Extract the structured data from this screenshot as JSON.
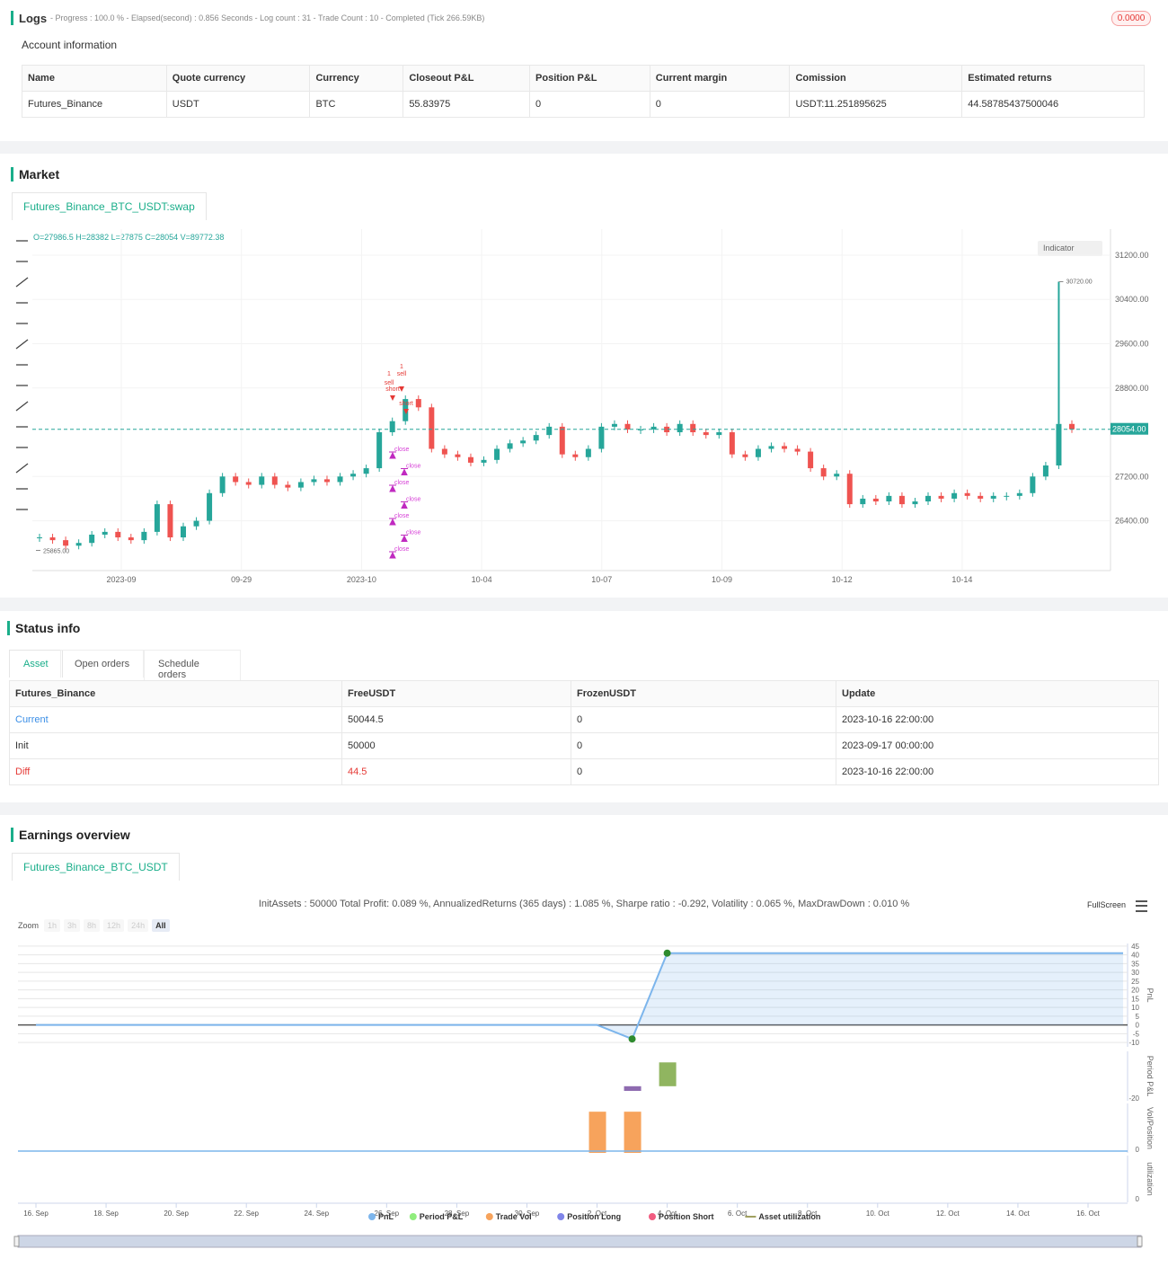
{
  "logs": {
    "title": "Logs",
    "status": "- Progress : 100.0 % - Elapsed(second) : 0.856  Seconds - Log count : 31 - Trade Count : 10 - Completed (Tick 266.59KB)",
    "badge": "0.0000"
  },
  "account": {
    "title": "Account information",
    "columns": [
      "Name",
      "Quote currency",
      "Currency",
      "Closeout P&L",
      "Position P&L",
      "Current margin",
      "Comission",
      "Estimated returns"
    ],
    "rows": [
      [
        "Futures_Binance",
        "USDT",
        "BTC",
        "55.83975",
        "0",
        "0",
        "USDT:11.251895625",
        "44.58785437500046"
      ]
    ]
  },
  "market": {
    "title": "Market",
    "tab": "Futures_Binance_BTC_USDT:swap",
    "ohlc": "O=27986.5 H=28382 L=27875 C=28054 V=89772.38",
    "indicator": "Indicator",
    "chart": {
      "type": "candlestick",
      "color_up": "#26a69a",
      "color_down": "#ef5350",
      "closes": [
        26100,
        26050,
        25950,
        26000,
        26150,
        26200,
        26100,
        26050,
        26200,
        26700,
        26100,
        26300,
        26400,
        26900,
        27200,
        27100,
        27050,
        27200,
        27050,
        27000,
        27100,
        27150,
        27100,
        27200,
        27250,
        27350,
        28000,
        28200,
        28600,
        28450,
        27700,
        27600,
        27550,
        27450,
        27500,
        27700,
        27800,
        27850,
        27950,
        28100,
        27600,
        27550,
        27700,
        28100,
        28150,
        28050,
        28050,
        28100,
        28000,
        28150,
        28000,
        27950,
        28000,
        27600,
        27550,
        27700,
        27750,
        27700,
        27650,
        27350,
        27200,
        27250,
        26700,
        26800,
        26750,
        26850,
        26700,
        26750,
        26850,
        26800,
        26900,
        26850,
        26800,
        26850,
        26850,
        26900,
        27200,
        27400,
        28150,
        28054
      ],
      "ylim": [
        25500,
        31670
      ],
      "yticks": [
        {
          "value": 31200,
          "label": "31200.00"
        },
        {
          "value": 30400,
          "label": "30400.00"
        },
        {
          "value": 29600,
          "label": "29600.00"
        },
        {
          "value": 28800,
          "label": "28800.00"
        },
        {
          "value": 27200,
          "label": "27200.00"
        },
        {
          "value": 26400,
          "label": "26400.00"
        }
      ],
      "last": {
        "value": 28054,
        "label": "28054.00"
      },
      "high": {
        "value": 30720,
        "label": "30720.00"
      },
      "low": {
        "value": 25865,
        "label": "25865.00"
      },
      "xticks": [
        "2023-09",
        "09-29",
        "2023-10",
        "10-04",
        "10-07",
        "10-09",
        "10-12",
        "10-14"
      ],
      "signals": [
        "1",
        "sell",
        "sell",
        "short",
        "1",
        "short"
      ],
      "close_signals": [
        "close",
        "close",
        "close",
        "close",
        "close",
        "close",
        "close"
      ],
      "grid": true
    }
  },
  "status": {
    "title": "Status info",
    "tabs": [
      "Asset",
      "Open orders",
      "Schedule orders"
    ],
    "columns": [
      "Futures_Binance",
      "FreeUSDT",
      "FrozenUSDT",
      "Update"
    ],
    "rows": [
      [
        "Current",
        "50044.5",
        "0",
        "2023-10-16 22:00:00"
      ],
      [
        "Init",
        "50000",
        "0",
        "2023-09-17 00:00:00"
      ],
      [
        "Diff",
        "44.5",
        "0",
        "2023-10-16 22:00:00"
      ]
    ]
  },
  "earnings": {
    "title": "Earnings overview",
    "tab": "Futures_Binance_BTC_USDT",
    "summary": "InitAssets : 50000 Total Profit: 0.089 %, AnnualizedReturns (365 days) : 1.085 %, Sharpe ratio : -0.292, Volatility : 0.065 %, MaxDrawDown : 0.010 %",
    "fullscreen": "FullScreen",
    "zoom_label": "Zoom",
    "zoom_buttons": [
      "1h",
      "3h",
      "8h",
      "12h",
      "24h",
      "All"
    ],
    "xlim": [
      -0.5,
      31
    ],
    "xticks": [
      {
        "value": 0,
        "label": "16. Sep"
      },
      {
        "value": 2,
        "label": "18. Sep"
      },
      {
        "value": 4,
        "label": "20. Sep"
      },
      {
        "value": 6,
        "label": "22. Sep"
      },
      {
        "value": 8,
        "label": "24. Sep"
      },
      {
        "value": 10,
        "label": "26. Sep"
      },
      {
        "value": 12,
        "label": "28. Sep"
      },
      {
        "value": 14,
        "label": "30. Sep"
      },
      {
        "value": 16,
        "label": "2. Oct"
      },
      {
        "value": 18,
        "label": "4. Oct"
      },
      {
        "value": 20,
        "label": "6. Oct"
      },
      {
        "value": 22,
        "label": "8. Oct"
      },
      {
        "value": 24,
        "label": "10. Oct"
      },
      {
        "value": 26,
        "label": "12. Oct"
      },
      {
        "value": 28,
        "label": "14. Oct"
      },
      {
        "value": 30,
        "label": "16. Oct"
      }
    ],
    "pnl": {
      "type": "area",
      "title": "PnL",
      "x": [
        0,
        16,
        17,
        18,
        31
      ],
      "values": [
        0,
        0,
        -8,
        41,
        41
      ],
      "color": "#7cb5ec",
      "ylim": [
        -12.5,
        46.5
      ],
      "yticks": [
        45,
        40,
        35,
        30,
        25,
        20,
        15,
        10,
        5,
        0,
        -5,
        -10
      ]
    },
    "period_pnl": {
      "type": "bar",
      "title": "Period P&L",
      "x": [
        17,
        18
      ],
      "values": [
        -8,
        41
      ],
      "colors": [
        "#8e6bb0",
        "#90b560"
      ],
      "ylim": [
        -25,
        60
      ],
      "yticks": [
        -20
      ]
    },
    "vol": {
      "type": "bar",
      "title": "Vol/Position",
      "x": [
        16,
        17
      ],
      "values": [
        1,
        1
      ],
      "color": "#f7a35c",
      "ylim": [
        0,
        1.2
      ],
      "yticks": [
        0
      ]
    },
    "util": {
      "type": "line",
      "title": "utilization",
      "yticks": [
        0
      ]
    },
    "legend": [
      {
        "name": "PnL",
        "color": "#7cb5ec"
      },
      {
        "name": "Period P&L",
        "color": "#90ed7d"
      },
      {
        "name": "Trade Vol",
        "color": "#f7a35c"
      },
      {
        "name": "Position Long",
        "color": "#8085e9"
      },
      {
        "name": "Position Short",
        "color": "#f15c80"
      },
      {
        "name": "Asset utilization",
        "color": "#a0a060"
      }
    ]
  }
}
